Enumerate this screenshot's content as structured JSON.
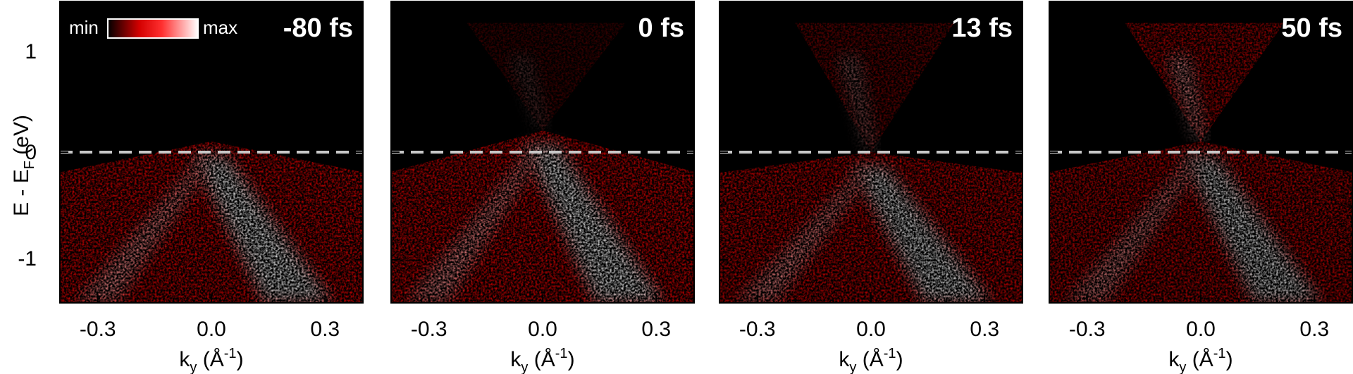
{
  "chart_data": [
    {
      "type": "heatmap",
      "panel": "-80 fs",
      "time_label": "-80 fs",
      "xlabel": "k_y (Å^-1)",
      "ylabel": "E - E_F (eV)",
      "xlim": [
        -0.4,
        0.4
      ],
      "ylim": [
        -1.4,
        1.4
      ],
      "xticks": [
        -0.3,
        0.0,
        0.3
      ],
      "yticks": [
        1,
        0,
        -1
      ],
      "fermi_level": 0,
      "bands": {
        "upper_cone": false,
        "apex_energy": 0.1,
        "upper_intensity": 0.0,
        "lower_intensity": 1.0
      }
    },
    {
      "type": "heatmap",
      "panel": "0 fs",
      "time_label": "0 fs",
      "xlabel": "k_y (Å^-1)",
      "xlim": [
        -0.4,
        0.4
      ],
      "ylim": [
        -1.4,
        1.4
      ],
      "xticks": [
        -0.3,
        0.0,
        0.3
      ],
      "fermi_level": 0,
      "bands": {
        "upper_cone": true,
        "apex_energy": 0.2,
        "upper_intensity": 0.35,
        "lower_intensity": 1.0
      }
    },
    {
      "type": "heatmap",
      "panel": "13 fs",
      "time_label": "13 fs",
      "xlabel": "k_y (Å^-1)",
      "xlim": [
        -0.4,
        0.4
      ],
      "ylim": [
        -1.4,
        1.4
      ],
      "xticks": [
        -0.3,
        0.0,
        0.3
      ],
      "fermi_level": 0,
      "bands": {
        "upper_cone": true,
        "apex_energy": 0.0,
        "upper_intensity": 0.55,
        "lower_intensity": 0.95
      }
    },
    {
      "type": "heatmap",
      "panel": "50 fs",
      "time_label": "50 fs",
      "xlabel": "k_y (Å^-1)",
      "xlim": [
        -0.4,
        0.4
      ],
      "ylim": [
        -1.4,
        1.4
      ],
      "xticks": [
        -0.3,
        0.0,
        0.3
      ],
      "fermi_level": 0,
      "bands": {
        "upper_cone": true,
        "apex_energy": 0.1,
        "upper_intensity": 0.85,
        "lower_intensity": 0.9
      }
    }
  ],
  "colorbar": {
    "min_label": "min",
    "max_label": "max",
    "colors": [
      "#000000",
      "#d40000",
      "#ff2020",
      "#ffffff"
    ]
  },
  "axis_text": {
    "xlabel_base": "k",
    "xlabel_sub": "y",
    "xlabel_unit_open": " (Å",
    "xlabel_unit_sup": "-1",
    "xlabel_unit_close": ")",
    "ylabel_base": "E - E",
    "ylabel_sub": "F",
    "ylabel_unit": " (eV)",
    "xtick_labels": [
      "-0.3",
      "0.0",
      "0.3"
    ],
    "ytick_labels": [
      "1",
      "0",
      "-1"
    ]
  },
  "colors": {
    "fermi_line": "#c8c8c8",
    "background": "#000000",
    "accent": "#e00000"
  }
}
